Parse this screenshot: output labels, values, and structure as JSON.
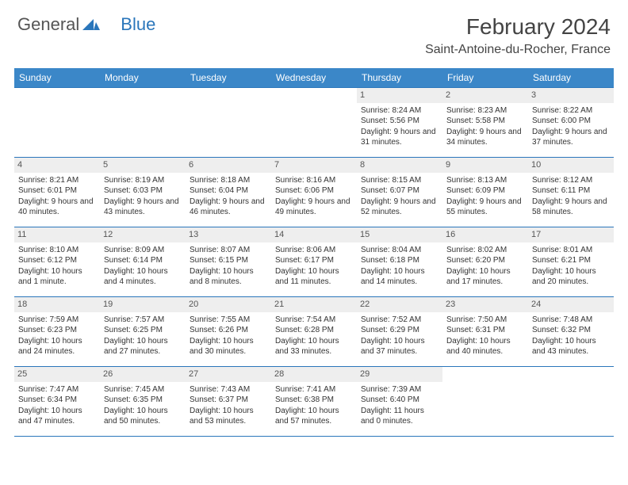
{
  "logo": {
    "text1": "General",
    "text2": "Blue"
  },
  "header": {
    "title": "February 2024",
    "location": "Saint-Antoine-du-Rocher, France"
  },
  "colors": {
    "header_bg": "#3b87c8",
    "border": "#2a76bb",
    "daynum_bg": "#eeeeee"
  },
  "calendar": {
    "type": "table",
    "columns": [
      "Sunday",
      "Monday",
      "Tuesday",
      "Wednesday",
      "Thursday",
      "Friday",
      "Saturday"
    ],
    "weeks": [
      [
        {
          "n": "",
          "sr": "",
          "ss": "",
          "dl": ""
        },
        {
          "n": "",
          "sr": "",
          "ss": "",
          "dl": ""
        },
        {
          "n": "",
          "sr": "",
          "ss": "",
          "dl": ""
        },
        {
          "n": "",
          "sr": "",
          "ss": "",
          "dl": ""
        },
        {
          "n": "1",
          "sr": "Sunrise: 8:24 AM",
          "ss": "Sunset: 5:56 PM",
          "dl": "Daylight: 9 hours and 31 minutes."
        },
        {
          "n": "2",
          "sr": "Sunrise: 8:23 AM",
          "ss": "Sunset: 5:58 PM",
          "dl": "Daylight: 9 hours and 34 minutes."
        },
        {
          "n": "3",
          "sr": "Sunrise: 8:22 AM",
          "ss": "Sunset: 6:00 PM",
          "dl": "Daylight: 9 hours and 37 minutes."
        }
      ],
      [
        {
          "n": "4",
          "sr": "Sunrise: 8:21 AM",
          "ss": "Sunset: 6:01 PM",
          "dl": "Daylight: 9 hours and 40 minutes."
        },
        {
          "n": "5",
          "sr": "Sunrise: 8:19 AM",
          "ss": "Sunset: 6:03 PM",
          "dl": "Daylight: 9 hours and 43 minutes."
        },
        {
          "n": "6",
          "sr": "Sunrise: 8:18 AM",
          "ss": "Sunset: 6:04 PM",
          "dl": "Daylight: 9 hours and 46 minutes."
        },
        {
          "n": "7",
          "sr": "Sunrise: 8:16 AM",
          "ss": "Sunset: 6:06 PM",
          "dl": "Daylight: 9 hours and 49 minutes."
        },
        {
          "n": "8",
          "sr": "Sunrise: 8:15 AM",
          "ss": "Sunset: 6:07 PM",
          "dl": "Daylight: 9 hours and 52 minutes."
        },
        {
          "n": "9",
          "sr": "Sunrise: 8:13 AM",
          "ss": "Sunset: 6:09 PM",
          "dl": "Daylight: 9 hours and 55 minutes."
        },
        {
          "n": "10",
          "sr": "Sunrise: 8:12 AM",
          "ss": "Sunset: 6:11 PM",
          "dl": "Daylight: 9 hours and 58 minutes."
        }
      ],
      [
        {
          "n": "11",
          "sr": "Sunrise: 8:10 AM",
          "ss": "Sunset: 6:12 PM",
          "dl": "Daylight: 10 hours and 1 minute."
        },
        {
          "n": "12",
          "sr": "Sunrise: 8:09 AM",
          "ss": "Sunset: 6:14 PM",
          "dl": "Daylight: 10 hours and 4 minutes."
        },
        {
          "n": "13",
          "sr": "Sunrise: 8:07 AM",
          "ss": "Sunset: 6:15 PM",
          "dl": "Daylight: 10 hours and 8 minutes."
        },
        {
          "n": "14",
          "sr": "Sunrise: 8:06 AM",
          "ss": "Sunset: 6:17 PM",
          "dl": "Daylight: 10 hours and 11 minutes."
        },
        {
          "n": "15",
          "sr": "Sunrise: 8:04 AM",
          "ss": "Sunset: 6:18 PM",
          "dl": "Daylight: 10 hours and 14 minutes."
        },
        {
          "n": "16",
          "sr": "Sunrise: 8:02 AM",
          "ss": "Sunset: 6:20 PM",
          "dl": "Daylight: 10 hours and 17 minutes."
        },
        {
          "n": "17",
          "sr": "Sunrise: 8:01 AM",
          "ss": "Sunset: 6:21 PM",
          "dl": "Daylight: 10 hours and 20 minutes."
        }
      ],
      [
        {
          "n": "18",
          "sr": "Sunrise: 7:59 AM",
          "ss": "Sunset: 6:23 PM",
          "dl": "Daylight: 10 hours and 24 minutes."
        },
        {
          "n": "19",
          "sr": "Sunrise: 7:57 AM",
          "ss": "Sunset: 6:25 PM",
          "dl": "Daylight: 10 hours and 27 minutes."
        },
        {
          "n": "20",
          "sr": "Sunrise: 7:55 AM",
          "ss": "Sunset: 6:26 PM",
          "dl": "Daylight: 10 hours and 30 minutes."
        },
        {
          "n": "21",
          "sr": "Sunrise: 7:54 AM",
          "ss": "Sunset: 6:28 PM",
          "dl": "Daylight: 10 hours and 33 minutes."
        },
        {
          "n": "22",
          "sr": "Sunrise: 7:52 AM",
          "ss": "Sunset: 6:29 PM",
          "dl": "Daylight: 10 hours and 37 minutes."
        },
        {
          "n": "23",
          "sr": "Sunrise: 7:50 AM",
          "ss": "Sunset: 6:31 PM",
          "dl": "Daylight: 10 hours and 40 minutes."
        },
        {
          "n": "24",
          "sr": "Sunrise: 7:48 AM",
          "ss": "Sunset: 6:32 PM",
          "dl": "Daylight: 10 hours and 43 minutes."
        }
      ],
      [
        {
          "n": "25",
          "sr": "Sunrise: 7:47 AM",
          "ss": "Sunset: 6:34 PM",
          "dl": "Daylight: 10 hours and 47 minutes."
        },
        {
          "n": "26",
          "sr": "Sunrise: 7:45 AM",
          "ss": "Sunset: 6:35 PM",
          "dl": "Daylight: 10 hours and 50 minutes."
        },
        {
          "n": "27",
          "sr": "Sunrise: 7:43 AM",
          "ss": "Sunset: 6:37 PM",
          "dl": "Daylight: 10 hours and 53 minutes."
        },
        {
          "n": "28",
          "sr": "Sunrise: 7:41 AM",
          "ss": "Sunset: 6:38 PM",
          "dl": "Daylight: 10 hours and 57 minutes."
        },
        {
          "n": "29",
          "sr": "Sunrise: 7:39 AM",
          "ss": "Sunset: 6:40 PM",
          "dl": "Daylight: 11 hours and 0 minutes."
        },
        {
          "n": "",
          "sr": "",
          "ss": "",
          "dl": ""
        },
        {
          "n": "",
          "sr": "",
          "ss": "",
          "dl": ""
        }
      ]
    ]
  }
}
